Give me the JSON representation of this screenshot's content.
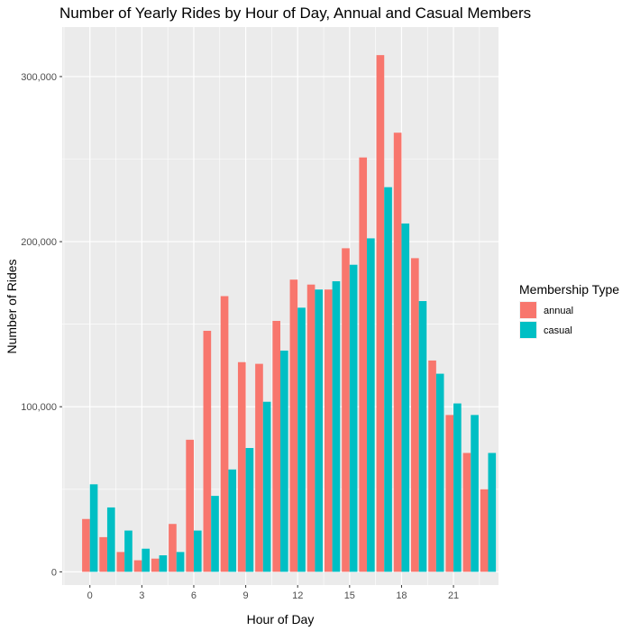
{
  "chart_data": {
    "type": "bar",
    "title": "Number of Yearly Rides by Hour of Day, Annual and Casual Members",
    "xlabel": "Hour of Day",
    "ylabel": "Number of Rides",
    "x": [
      0,
      1,
      2,
      3,
      4,
      5,
      6,
      7,
      8,
      9,
      10,
      11,
      12,
      13,
      14,
      15,
      16,
      17,
      18,
      19,
      20,
      21,
      22,
      23
    ],
    "x_ticks": [
      0,
      3,
      6,
      9,
      12,
      15,
      18,
      21
    ],
    "x_tick_labels": [
      "0",
      "3",
      "6",
      "9",
      "12",
      "15",
      "18",
      "21"
    ],
    "xlim": [
      -1.6,
      23.6
    ],
    "ylim": [
      -8000,
      330000
    ],
    "y_ticks": [
      0,
      100000,
      200000,
      300000
    ],
    "y_tick_labels": [
      "0",
      "100,000",
      "200,000",
      "300,000"
    ],
    "grid": true,
    "legend": {
      "title": "Membership Type",
      "position": "right"
    },
    "series": [
      {
        "name": "annual",
        "color": "#F8766D",
        "values": [
          32000,
          21000,
          12000,
          7000,
          8000,
          29000,
          80000,
          146000,
          167000,
          127000,
          126000,
          152000,
          177000,
          174000,
          171000,
          196000,
          251000,
          313000,
          266000,
          190000,
          128000,
          95000,
          72000,
          50000
        ]
      },
      {
        "name": "casual",
        "color": "#00BFC4",
        "values": [
          53000,
          39000,
          25000,
          14000,
          10000,
          12000,
          25000,
          46000,
          62000,
          75000,
          103000,
          134000,
          160000,
          171000,
          176000,
          186000,
          202000,
          233000,
          211000,
          164000,
          120000,
          102000,
          95000,
          72000
        ]
      }
    ]
  }
}
